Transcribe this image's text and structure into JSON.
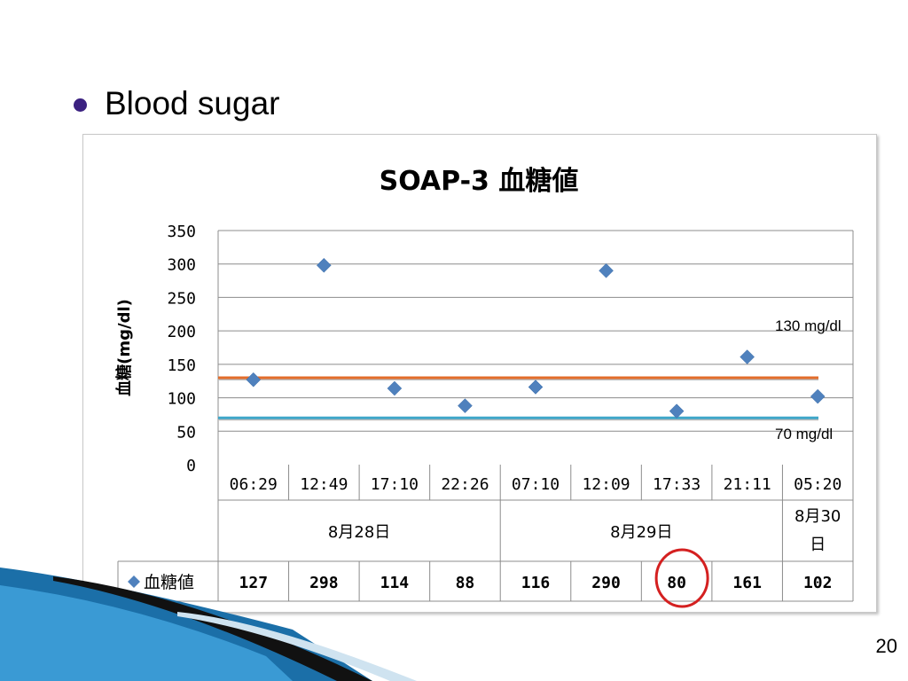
{
  "slide": {
    "heading": "Blood sugar",
    "page_number": "20"
  },
  "annotations": {
    "upper_label": "130 mg/dl",
    "lower_label": "70 mg/dl",
    "upper_color": "#e36c2a",
    "lower_color": "#3fa7c9",
    "circled_value": "80",
    "circle_color": "#d42020"
  },
  "chart_data": {
    "type": "scatter",
    "title": "SOAP-3 血糖値",
    "ylabel": "血糖(mg/dl)",
    "ylim": [
      0,
      350
    ],
    "yticks": [
      0,
      50,
      100,
      150,
      200,
      250,
      300,
      350
    ],
    "grid": true,
    "categories": [
      "06:29",
      "12:49",
      "17:10",
      "22:26",
      "07:10",
      "12:09",
      "17:33",
      "21:11",
      "05:20"
    ],
    "groups": [
      {
        "label": "8月28日",
        "span": 4
      },
      {
        "label": "8月29日",
        "span": 4
      },
      {
        "label": "8月30日",
        "span": 1
      }
    ],
    "series": [
      {
        "name": "血糖値",
        "values": [
          127,
          298,
          114,
          88,
          116,
          290,
          80,
          161,
          102
        ],
        "color": "#4f81bd",
        "marker": "diamond"
      }
    ],
    "reference_lines": [
      {
        "label": "130 mg/dl",
        "value": 130
      },
      {
        "label": "70 mg/dl",
        "value": 70
      }
    ]
  }
}
